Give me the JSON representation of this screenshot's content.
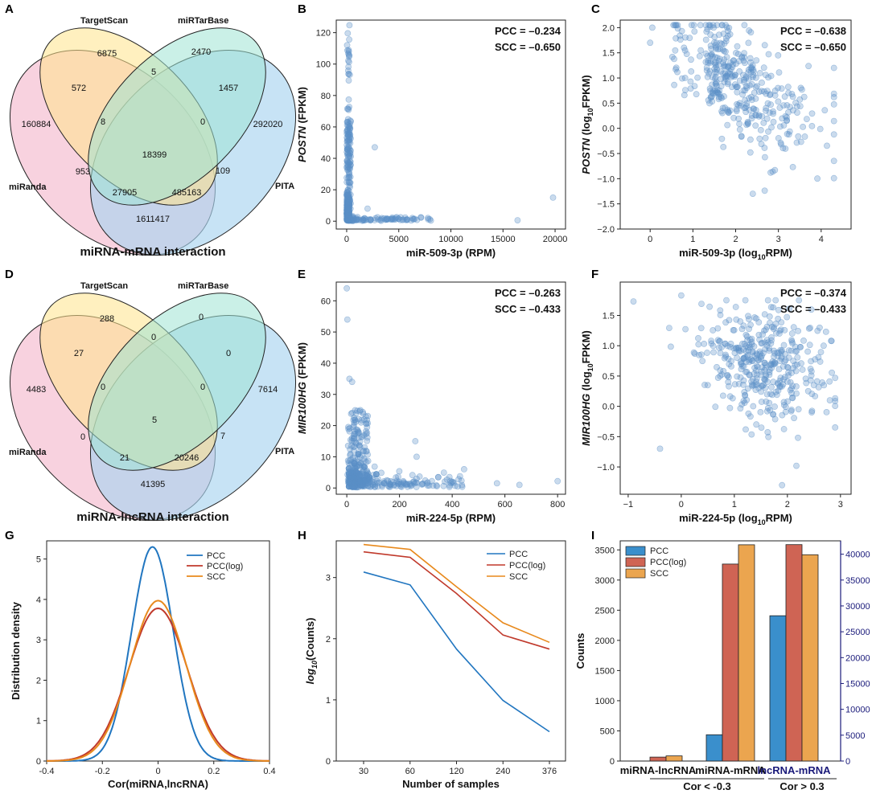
{
  "panels": {
    "A": "A",
    "B": "B",
    "C": "C",
    "D": "D",
    "E": "E",
    "F": "F",
    "G": "G",
    "H": "H",
    "I": "I"
  },
  "colors": {
    "scatter": "#5b8fc7",
    "pcc": "#2176c0",
    "pcc_log": "#c0392b",
    "scc": "#e8891c",
    "bar_pcc": "#3a8fcc",
    "bar_pcc_log": "#cf6454",
    "bar_scc": "#eba54f",
    "secondary_axis": "#1a1a7a",
    "venn_mirtarbase": "#9ee3d4",
    "venn_targetscan": "#ffe48a",
    "venn_miranda": "#f6c3d4",
    "venn_pita": "#a9d4f0"
  },
  "chart_data": [
    {
      "id": "A",
      "type": "venn",
      "title": "miRNA-mRNA interaction",
      "sets": [
        "TargetScan",
        "miRTarBase",
        "miRanda",
        "PITA"
      ],
      "regions": {
        "targetscan_only": "6875",
        "mirtarbase_only": "2470",
        "miranda_only": "160884",
        "pita_only": "292020",
        "ts_mt": "5",
        "ts_mr": "572",
        "mt_pita": "1457",
        "ts_mt_mr": "8",
        "ts_mt_pita": "0",
        "all": "18399",
        "mt_mr": "953",
        "ts_pita": "109",
        "mt_mr_pita": "27905",
        "ts_mr_pita": "485163",
        "mr_pita": "1611417"
      }
    },
    {
      "id": "B",
      "type": "scatter",
      "xlabel": "miR-509-3p (RPM)",
      "ylabel_italic": "POSTN",
      "ylabel_rest": " (FPKM)",
      "pcc": "PCC = –0.234",
      "scc": "SCC = –0.650",
      "xlim": [
        -1000,
        21000
      ],
      "ylim": [
        -5,
        128
      ],
      "xticks": [
        "0",
        "5000",
        "10000",
        "15000",
        "20000"
      ],
      "yticks": [
        "0",
        "20",
        "40",
        "60",
        "80",
        "100",
        "120"
      ],
      "xtick_vals": [
        0,
        5000,
        10000,
        15000,
        20000
      ],
      "ytick_vals": [
        0,
        20,
        40,
        60,
        80,
        100,
        120
      ]
    },
    {
      "id": "C",
      "type": "scatter",
      "xlabel_pre": "miR-509-3p (log",
      "xlabel_sub": "10",
      "xlabel_post": "RPM)",
      "ylabel_italic": "POSTN",
      "ylabel_pre": " (log",
      "ylabel_sub": "10",
      "ylabel_post": "FPKM)",
      "pcc": "PCC = –0.638",
      "scc": "SCC = –0.650",
      "xlim": [
        -0.7,
        4.7
      ],
      "ylim": [
        -2.0,
        2.15
      ],
      "xticks": [
        "0",
        "1",
        "2",
        "3",
        "4"
      ],
      "yticks": [
        "−2.0",
        "−1.5",
        "−1.0",
        "−0.5",
        "0.0",
        "0.5",
        "1.0",
        "1.5",
        "2.0"
      ],
      "xtick_vals": [
        0,
        1,
        2,
        3,
        4
      ],
      "ytick_vals": [
        -2.0,
        -1.5,
        -1.0,
        -0.5,
        0.0,
        0.5,
        1.0,
        1.5,
        2.0
      ]
    },
    {
      "id": "D",
      "type": "venn",
      "title": "miRNA-lncRNA interaction",
      "sets": [
        "TargetScan",
        "miRTarBase",
        "miRanda",
        "PITA"
      ],
      "regions": {
        "targetscan_only": "288",
        "mirtarbase_only": "0",
        "miranda_only": "4483",
        "pita_only": "7614",
        "ts_mt": "0",
        "ts_mr": "27",
        "mt_pita": "0",
        "ts_mt_mr": "0",
        "ts_mt_pita": "0",
        "all": "5",
        "mt_mr": "0",
        "ts_pita": "7",
        "mt_mr_pita": "21",
        "ts_mr_pita": "20246",
        "mr_pita": "41395"
      }
    },
    {
      "id": "E",
      "type": "scatter",
      "xlabel": "miR-224-5p (RPM)",
      "ylabel_italic": "MIR100HG",
      "ylabel_rest": " (FPKM)",
      "pcc": "PCC = –0.263",
      "scc": "SCC = –0.433",
      "xlim": [
        -40,
        830
      ],
      "ylim": [
        -2,
        66
      ],
      "xticks": [
        "0",
        "200",
        "400",
        "600",
        "800"
      ],
      "yticks": [
        "0",
        "10",
        "20",
        "30",
        "40",
        "50",
        "60"
      ],
      "xtick_vals": [
        0,
        200,
        400,
        600,
        800
      ],
      "ytick_vals": [
        0,
        10,
        20,
        30,
        40,
        50,
        60
      ]
    },
    {
      "id": "F",
      "type": "scatter",
      "xlabel_pre": "miR-224-5p (log",
      "xlabel_sub": "10",
      "xlabel_post": "RPM)",
      "ylabel_italic": "MIR100HG",
      "ylabel_pre": " (log",
      "ylabel_sub": "10",
      "ylabel_post": "FPKM)",
      "pcc": "PCC = –0.374",
      "scc": "SCC = –0.433",
      "xlim": [
        -1.15,
        3.2
      ],
      "ylim": [
        -1.45,
        2.05
      ],
      "xticks": [
        "−1",
        "0",
        "1",
        "2",
        "3"
      ],
      "yticks": [
        "−1.0",
        "−0.5",
        "0.0",
        "0.5",
        "1.0",
        "1.5"
      ],
      "xtick_vals": [
        -1,
        0,
        1,
        2,
        3
      ],
      "ytick_vals": [
        -1.0,
        -0.5,
        0.0,
        0.5,
        1.0,
        1.5
      ]
    },
    {
      "id": "G",
      "type": "line",
      "xlabel": "Cor(miRNA,lncRNA)",
      "ylabel": "Distribution density",
      "xlim": [
        -0.4,
        0.4
      ],
      "ylim": [
        0,
        5.45
      ],
      "xticks": [
        "-0.4",
        "-0.2",
        "0",
        "0.2",
        "0.4"
      ],
      "yticks": [
        "0",
        "1",
        "2",
        "3",
        "4",
        "5"
      ],
      "xtick_vals": [
        -0.4,
        -0.2,
        0,
        0.2,
        0.4
      ],
      "ytick_vals": [
        0,
        1,
        2,
        3,
        4,
        5
      ],
      "legend": [
        "PCC",
        "PCC(log)",
        "SCC"
      ],
      "series": [
        {
          "name": "PCC",
          "mu": -0.02,
          "sigma": 0.075,
          "peak": 5.3
        },
        {
          "name": "PCC(log)",
          "mu": 0.0,
          "sigma": 0.105,
          "peak": 3.78
        },
        {
          "name": "SCC",
          "mu": 0.0,
          "sigma": 0.1,
          "peak": 3.97
        }
      ]
    },
    {
      "id": "H",
      "type": "line",
      "xlabel": "Number of samples",
      "ylabel_pre": "log",
      "ylabel_sub": "10",
      "ylabel_post": "(Counts)",
      "categories": [
        "30",
        "60",
        "120",
        "240",
        "376"
      ],
      "ylim": [
        0,
        3.6
      ],
      "yticks": [
        "0",
        "1",
        "2",
        "3"
      ],
      "ytick_vals": [
        0,
        1,
        2,
        3
      ],
      "legend": [
        "PCC",
        "PCC(log)",
        "SCC"
      ],
      "series": [
        {
          "name": "PCC",
          "values": [
            3.09,
            2.88,
            1.83,
            0.99,
            0.48
          ]
        },
        {
          "name": "PCC(log)",
          "values": [
            3.42,
            3.33,
            2.74,
            2.06,
            1.83
          ]
        },
        {
          "name": "SCC",
          "values": [
            3.54,
            3.46,
            2.85,
            2.26,
            1.94
          ]
        }
      ]
    },
    {
      "id": "I",
      "type": "bar",
      "ylabel": "Counts",
      "categories": [
        "miRNA-lncRNA",
        "miRNA-mRNA",
        "lncRNA-mRNA"
      ],
      "groups": [
        "Cor < -0.3",
        "Cor > 0.3"
      ],
      "ylim": [
        0,
        3650
      ],
      "y2lim": [
        0,
        42583
      ],
      "yticks": [
        "0",
        "500",
        "1000",
        "1500",
        "2000",
        "2500",
        "3000",
        "3500"
      ],
      "ytick_vals": [
        0,
        500,
        1000,
        1500,
        2000,
        2500,
        3000,
        3500
      ],
      "y2ticks": [
        "0",
        "5000",
        "10000",
        "15000",
        "20000",
        "25000",
        "30000",
        "35000",
        "40000"
      ],
      "y2tick_vals": [
        0,
        5000,
        10000,
        15000,
        20000,
        25000,
        30000,
        35000,
        40000
      ],
      "legend": [
        "PCC",
        "PCC(log)",
        "SCC"
      ],
      "series": [
        {
          "name": "PCC",
          "values": [
            0,
            435,
            28100
          ],
          "axis": [
            1,
            1,
            2
          ]
        },
        {
          "name": "PCC(log)",
          "values": [
            65,
            3265,
            41850
          ],
          "axis": [
            1,
            1,
            2
          ]
        },
        {
          "name": "SCC",
          "values": [
            85,
            3585,
            39900
          ],
          "axis": [
            1,
            1,
            2
          ]
        }
      ]
    }
  ]
}
